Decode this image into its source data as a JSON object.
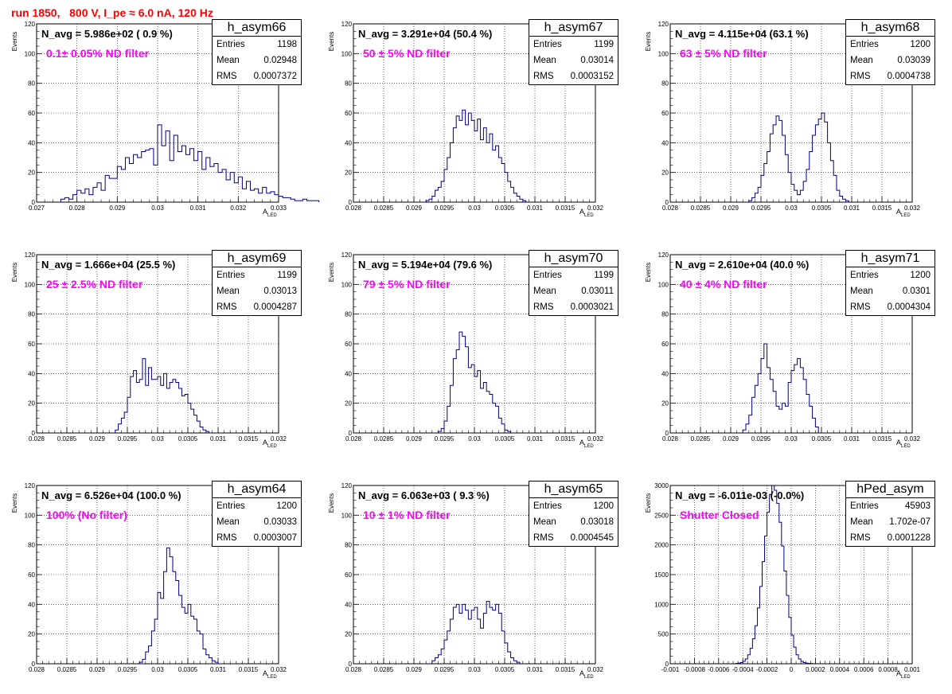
{
  "page_title": "run 1850,   800 V, I_pe ≈ 6.0 nA, 120 Hz",
  "colors": {
    "title": "#ff0000",
    "annotation": "#ff00ff",
    "line": "#000080"
  },
  "stat_labels": {
    "entries": "Entries",
    "mean": "Mean",
    "rms": "RMS"
  },
  "x_title": "A",
  "x_subscript": "LED",
  "y_title": "Events",
  "panels": [
    {
      "name": "h_asym66",
      "navg": "N_avg = 5.986e+02 ( 0.9 %)",
      "filter": "0.1± 0.05% ND filter",
      "entries": "1198",
      "mean": "0.02948",
      "rms": "0.0007372",
      "xticks": [
        "0.027",
        "0.028",
        "0.029",
        "0.03",
        "0.031",
        "0.032",
        "0.033"
      ],
      "yticks": [
        "0",
        "20",
        "40",
        "60",
        "80",
        "100",
        "120"
      ]
    },
    {
      "name": "h_asym67",
      "navg": "N_avg = 3.291e+04 (50.4 %)",
      "filter": "50 ± 5% ND filter",
      "entries": "1199",
      "mean": "0.03014",
      "rms": "0.0003152",
      "xticks": [
        "0.028",
        "0.0285",
        "0.029",
        "0.0295",
        "0.03",
        "0.0305",
        "0.031",
        "0.0315",
        "0.032"
      ],
      "yticks": [
        "0",
        "20",
        "40",
        "60",
        "80",
        "100",
        "120"
      ]
    },
    {
      "name": "h_asym68",
      "navg": "N_avg = 4.115e+04 (63.1 %)",
      "filter": "63 ± 5% ND filter",
      "entries": "1200",
      "mean": "0.03039",
      "rms": "0.0004738",
      "xticks": [
        "0.028",
        "0.0285",
        "0.029",
        "0.0295",
        "0.03",
        "0.0305",
        "0.031",
        "0.0315",
        "0.032"
      ],
      "yticks": [
        "0",
        "20",
        "40",
        "60",
        "80",
        "100",
        "120"
      ]
    },
    {
      "name": "h_asym69",
      "navg": "N_avg = 1.666e+04 (25.5 %)",
      "filter": "25 ± 2.5% ND filter",
      "entries": "1199",
      "mean": "0.03013",
      "rms": "0.0004287",
      "xticks": [
        "0.028",
        "0.0285",
        "0.029",
        "0.0295",
        "0.03",
        "0.0305",
        "0.031",
        "0.0315",
        "0.032"
      ],
      "yticks": [
        "0",
        "20",
        "40",
        "60",
        "80",
        "100",
        "120"
      ]
    },
    {
      "name": "h_asym70",
      "navg": "N_avg = 5.194e+04 (79.6 %)",
      "filter": "79 ± 5% ND filter",
      "entries": "1199",
      "mean": "0.03011",
      "rms": "0.0003021",
      "xticks": [
        "0.028",
        "0.0285",
        "0.029",
        "0.0295",
        "0.03",
        "0.0305",
        "0.031",
        "0.0315",
        "0.032"
      ],
      "yticks": [
        "0",
        "20",
        "40",
        "60",
        "80",
        "100",
        "120"
      ]
    },
    {
      "name": "h_asym71",
      "navg": "N_avg = 2.610e+04 (40.0 %)",
      "filter": "40 ± 4% ND filter",
      "entries": "1200",
      "mean": "0.0301",
      "rms": "0.0004304",
      "xticks": [
        "0.028",
        "0.0285",
        "0.029",
        "0.0295",
        "0.03",
        "0.0305",
        "0.031",
        "0.0315",
        "0.032"
      ],
      "yticks": [
        "0",
        "20",
        "40",
        "60",
        "80",
        "100",
        "120"
      ]
    },
    {
      "name": "h_asym64",
      "navg": "N_avg = 6.526e+04 (100.0 %)",
      "filter": "100% (No filter)",
      "entries": "1200",
      "mean": "0.03033",
      "rms": "0.0003007",
      "xticks": [
        "0.028",
        "0.0285",
        "0.029",
        "0.0295",
        "0.03",
        "0.0305",
        "0.031",
        "0.0315",
        "0.032"
      ],
      "yticks": [
        "0",
        "20",
        "40",
        "60",
        "80",
        "100",
        "120"
      ]
    },
    {
      "name": "h_asym65",
      "navg": "N_avg = 6.063e+03 ( 9.3 %)",
      "filter": "10 ± 1% ND filter",
      "entries": "1200",
      "mean": "0.03018",
      "rms": "0.0004545",
      "xticks": [
        "0.028",
        "0.0285",
        "0.029",
        "0.0295",
        "0.03",
        "0.0305",
        "0.031",
        "0.0315",
        "0.032"
      ],
      "yticks": [
        "0",
        "20",
        "40",
        "60",
        "80",
        "100",
        "120"
      ]
    },
    {
      "name": "hPed_asym",
      "navg": "N_avg = -6.011e-03 (-0.0%)",
      "filter": "Shutter Closed",
      "entries": "45903",
      "mean": "1.702e-07",
      "rms": "0.0001228",
      "xticks": [
        "-0.001",
        "-0.0008",
        "-0.0006",
        "-0.0004",
        "-0.0002",
        "0",
        "0.0002",
        "0.0004",
        "0.0006",
        "0.0008",
        "0.001"
      ],
      "yticks": [
        "0",
        "500",
        "1000",
        "1500",
        "2000",
        "2500",
        "3000"
      ]
    }
  ],
  "chart_data": [
    {
      "type": "bar",
      "title": "h_asym66",
      "xlabel": "A_LED",
      "ylabel": "Events",
      "xlim": [
        0.027,
        0.033
      ],
      "ylim": [
        0,
        120
      ],
      "grid": true,
      "bin_width": 0.0001,
      "x_start": 0.0276,
      "values": [
        2,
        3,
        2,
        5,
        8,
        6,
        9,
        5,
        10,
        13,
        8,
        18,
        16,
        16,
        24,
        22,
        30,
        26,
        32,
        30,
        34,
        35,
        36,
        25,
        52,
        38,
        48,
        28,
        45,
        34,
        38,
        32,
        36,
        28,
        34,
        22,
        30,
        24,
        26,
        20,
        22,
        15,
        20,
        13,
        17,
        9,
        14,
        8,
        9,
        6,
        10,
        6,
        7,
        5,
        4,
        3,
        3,
        2,
        1,
        1,
        2,
        1,
        1,
        1
      ]
    },
    {
      "type": "bar",
      "title": "h_asym67",
      "xlabel": "A_LED",
      "ylabel": "Events",
      "xlim": [
        0.028,
        0.032
      ],
      "ylim": [
        0,
        120
      ],
      "grid": true,
      "bin_width": 5e-05,
      "x_start": 0.0292,
      "values": [
        1,
        2,
        4,
        8,
        10,
        14,
        22,
        30,
        40,
        50,
        58,
        55,
        62,
        52,
        60,
        55,
        48,
        56,
        42,
        50,
        40,
        46,
        35,
        38,
        30,
        26,
        20,
        14,
        10,
        6,
        4,
        2,
        1
      ]
    },
    {
      "type": "bar",
      "title": "h_asym68",
      "xlabel": "A_LED",
      "ylabel": "Events",
      "xlim": [
        0.028,
        0.032
      ],
      "ylim": [
        0,
        120
      ],
      "grid": true,
      "bin_width": 5e-05,
      "x_start": 0.0293,
      "values": [
        1,
        3,
        6,
        10,
        18,
        26,
        34,
        46,
        52,
        58,
        55,
        45,
        32,
        20,
        12,
        8,
        5,
        8,
        14,
        22,
        34,
        45,
        52,
        56,
        60,
        54,
        40,
        28,
        18,
        8,
        4,
        2,
        1
      ]
    },
    {
      "type": "bar",
      "title": "h_asym69",
      "xlabel": "A_LED",
      "ylabel": "Events",
      "xlim": [
        0.028,
        0.032
      ],
      "ylim": [
        0,
        120
      ],
      "grid": true,
      "bin_width": 5e-05,
      "x_start": 0.0293,
      "values": [
        2,
        6,
        10,
        14,
        24,
        38,
        42,
        34,
        36,
        50,
        32,
        44,
        36,
        36,
        38,
        32,
        40,
        30,
        34,
        36,
        34,
        30,
        25,
        26,
        20,
        16,
        12,
        8,
        4,
        2,
        1
      ]
    },
    {
      "type": "bar",
      "title": "h_asym70",
      "xlabel": "A_LED",
      "ylabel": "Events",
      "xlim": [
        0.028,
        0.032
      ],
      "ylim": [
        0,
        120
      ],
      "grid": true,
      "bin_width": 5e-05,
      "x_start": 0.0294,
      "values": [
        1,
        3,
        8,
        18,
        32,
        50,
        56,
        68,
        65,
        58,
        44,
        46,
        38,
        42,
        30,
        34,
        28,
        26,
        20,
        18,
        10,
        6,
        2,
        1
      ]
    },
    {
      "type": "bar",
      "title": "h_asym71",
      "xlabel": "A_LED",
      "ylabel": "Events",
      "xlim": [
        0.028,
        0.032
      ],
      "ylim": [
        0,
        120
      ],
      "grid": true,
      "bin_width": 5e-05,
      "x_start": 0.0292,
      "values": [
        2,
        6,
        12,
        24,
        32,
        40,
        50,
        60,
        44,
        36,
        28,
        18,
        16,
        20,
        18,
        34,
        42,
        46,
        50,
        44,
        36,
        26,
        18,
        10,
        4
      ]
    },
    {
      "type": "bar",
      "title": "h_asym64",
      "xlabel": "A_LED",
      "ylabel": "Events",
      "xlim": [
        0.028,
        0.032
      ],
      "ylim": [
        0,
        120
      ],
      "grid": true,
      "bin_width": 5e-05,
      "x_start": 0.0297,
      "values": [
        1,
        3,
        8,
        12,
        22,
        30,
        48,
        44,
        62,
        78,
        72,
        62,
        56,
        46,
        38,
        34,
        40,
        32,
        30,
        22,
        20,
        10,
        6,
        4,
        2,
        1
      ]
    },
    {
      "type": "bar",
      "title": "h_asym65",
      "xlabel": "A_LED",
      "ylabel": "Events",
      "xlim": [
        0.028,
        0.032
      ],
      "ylim": [
        0,
        120
      ],
      "grid": true,
      "bin_width": 5e-05,
      "x_start": 0.0293,
      "values": [
        2,
        4,
        6,
        10,
        16,
        22,
        30,
        38,
        40,
        34,
        40,
        36,
        30,
        36,
        38,
        30,
        24,
        34,
        42,
        38,
        36,
        40,
        34,
        22,
        14,
        8,
        4,
        2,
        1
      ]
    },
    {
      "type": "bar",
      "title": "hPed_asym",
      "xlabel": "A_LED",
      "ylabel": "Events",
      "xlim": [
        -0.001,
        0.001
      ],
      "ylim": [
        0,
        3000
      ],
      "grid": true,
      "bin_width": 2e-05,
      "x_start": -0.00046,
      "values": [
        5,
        10,
        20,
        40,
        80,
        150,
        260,
        420,
        640,
        940,
        1300,
        1720,
        2150,
        2550,
        2850,
        3000,
        2920,
        2700,
        2380,
        1980,
        1560,
        1150,
        780,
        480,
        280,
        150,
        80,
        40,
        20,
        10,
        5,
        3
      ]
    }
  ]
}
